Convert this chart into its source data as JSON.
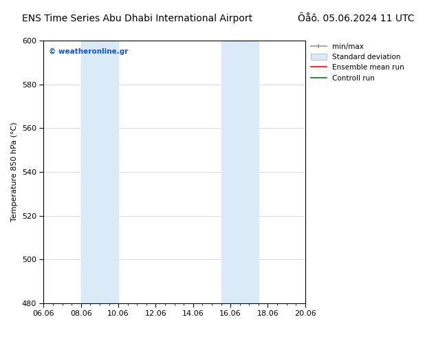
{
  "title_left": "ENS Time Series Abu Dhabi International Airport",
  "title_right": "Ôåô. 05.06.2024 11 UTC",
  "ylabel": "Temperature 850 hPa (°C)",
  "ylim": [
    480,
    600
  ],
  "yticks": [
    480,
    500,
    520,
    540,
    560,
    580,
    600
  ],
  "xtick_labels": [
    "06.06",
    "08.06",
    "10.06",
    "12.06",
    "14.06",
    "16.06",
    "18.06",
    "20.06"
  ],
  "xtick_positions": [
    0,
    2,
    4,
    6,
    8,
    10,
    12,
    14
  ],
  "xlim": [
    0,
    14
  ],
  "shaded_bands": [
    {
      "x_start": 2,
      "x_end": 4,
      "color": "#daeaf7"
    },
    {
      "x_start": 9.5,
      "x_end": 11.5,
      "color": "#daeaf7"
    }
  ],
  "legend_entries": [
    {
      "label": "min/max",
      "color": "#aaaaaa",
      "style": "line_with_cap"
    },
    {
      "label": "Standard deviation",
      "color": "#c8dff0",
      "style": "filled_box"
    },
    {
      "label": "Ensemble mean run",
      "color": "#ff0000",
      "style": "line"
    },
    {
      "label": "Controll run",
      "color": "#008000",
      "style": "line"
    }
  ],
  "watermark_text": "© weatheronline.gr",
  "watermark_color": "#1155cc",
  "background_color": "#ffffff",
  "plot_bg_color": "#ffffff",
  "grid_color": "#cccccc",
  "title_fontsize": 10,
  "axis_fontsize": 8,
  "tick_fontsize": 8,
  "legend_fontsize": 7.5
}
